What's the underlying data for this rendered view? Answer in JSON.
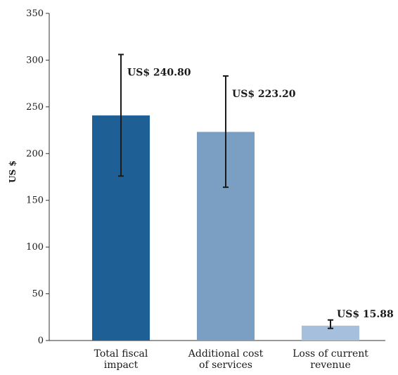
{
  "chart_data": {
    "type": "bar",
    "title": "",
    "xlabel": "",
    "ylabel": "US $",
    "ylim": [
      0,
      350
    ],
    "yticks": [
      0,
      50,
      100,
      150,
      200,
      250,
      300,
      350
    ],
    "grid": false,
    "categories": [
      [
        "Total fiscal",
        "impact"
      ],
      [
        "Additional cost",
        "of services"
      ],
      [
        "Loss of current",
        "revenue"
      ]
    ],
    "values": [
      240.8,
      223.2,
      15.88
    ],
    "error_bars": [
      {
        "low": 176,
        "high": 306
      },
      {
        "low": 164,
        "high": 283
      },
      {
        "low": 13,
        "high": 22
      }
    ],
    "data_labels": [
      "US$ 240.80",
      "US$ 223.20",
      "US$ 15.88"
    ],
    "colors": [
      "#1e5f95",
      "#7b9ec3",
      "#a6bfdc"
    ],
    "error_color": "#1a1a1a"
  }
}
